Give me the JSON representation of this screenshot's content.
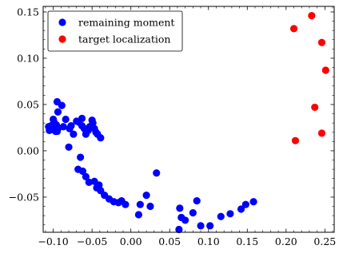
{
  "chart_data": {
    "type": "scatter",
    "title": "",
    "xlabel": "",
    "ylabel": "",
    "xlim": [
      -0.113,
      0.262
    ],
    "ylim": [
      -0.088,
      0.156
    ],
    "x_ticks": [
      -0.1,
      -0.05,
      0.0,
      0.05,
      0.1,
      0.15,
      0.2,
      0.25
    ],
    "x_tick_labels": [
      "−0.10",
      "−0.05",
      "0.00",
      "0.05",
      "0.10",
      "0.15",
      "0.20",
      "0.25"
    ],
    "y_ticks": [
      -0.05,
      0.0,
      0.05,
      0.1,
      0.15
    ],
    "y_tick_labels": [
      "−0.05",
      "0.00",
      "0.05",
      "0.10",
      "0.15"
    ],
    "grid": false,
    "legend_position": "top-left",
    "series": [
      {
        "name": "remaining moment",
        "color": "#0000ff",
        "points": [
          [
            -0.089,
            0.049
          ],
          [
            -0.094,
            0.042
          ],
          [
            -0.106,
            0.026
          ],
          [
            -0.105,
            0.022
          ],
          [
            -0.103,
            0.027
          ],
          [
            -0.102,
            0.024
          ],
          [
            -0.1,
            0.034
          ],
          [
            -0.099,
            0.031
          ],
          [
            -0.098,
            0.026
          ],
          [
            -0.097,
            0.021
          ],
          [
            -0.096,
            0.028
          ],
          [
            -0.094,
            0.024
          ],
          [
            -0.095,
            0.021
          ],
          [
            -0.087,
            0.026
          ],
          [
            -0.084,
            0.034
          ],
          [
            -0.079,
            0.024
          ],
          [
            -0.077,
            0.027
          ],
          [
            -0.074,
            0.018
          ],
          [
            -0.07,
            0.032
          ],
          [
            -0.067,
            0.031
          ],
          [
            -0.063,
            0.035
          ],
          [
            -0.063,
            0.027
          ],
          [
            -0.06,
            0.024
          ],
          [
            -0.058,
            0.018
          ],
          [
            -0.055,
            0.022
          ],
          [
            -0.053,
            0.026
          ],
          [
            -0.05,
            0.033
          ],
          [
            -0.049,
            0.03
          ],
          [
            -0.047,
            0.024
          ],
          [
            -0.045,
            0.02
          ],
          [
            -0.043,
            0.018
          ],
          [
            -0.039,
            0.014
          ],
          [
            -0.095,
            0.053
          ],
          [
            -0.08,
            0.004
          ],
          [
            -0.068,
            -0.02
          ],
          [
            -0.062,
            -0.022
          ],
          [
            -0.065,
            -0.007
          ],
          [
            -0.058,
            -0.028
          ],
          [
            -0.054,
            -0.034
          ],
          [
            -0.047,
            -0.033
          ],
          [
            -0.044,
            -0.04
          ],
          [
            -0.041,
            -0.037
          ],
          [
            -0.039,
            -0.043
          ],
          [
            -0.034,
            -0.048
          ],
          [
            -0.028,
            -0.052
          ],
          [
            -0.022,
            -0.055
          ],
          [
            -0.016,
            -0.056
          ],
          [
            -0.012,
            -0.054
          ],
          [
            -0.007,
            -0.058
          ],
          [
            0.01,
            -0.069
          ],
          [
            0.012,
            -0.058
          ],
          [
            0.025,
            -0.06
          ],
          [
            0.033,
            -0.024
          ],
          [
            0.063,
            -0.062
          ],
          [
            0.065,
            -0.072
          ],
          [
            0.07,
            -0.075
          ],
          [
            0.08,
            -0.067
          ],
          [
            0.085,
            -0.054
          ],
          [
            0.09,
            -0.081
          ],
          [
            0.102,
            -0.081
          ],
          [
            0.128,
            -0.068
          ],
          [
            0.142,
            -0.063
          ],
          [
            0.148,
            -0.058
          ],
          [
            0.158,
            -0.055
          ],
          [
            0.116,
            -0.071
          ],
          [
            0.02,
            -0.048
          ],
          [
            0.062,
            -0.085
          ]
        ]
      },
      {
        "name": "target localization",
        "color": "#ff0000",
        "points": [
          [
            0.233,
            0.146
          ],
          [
            0.21,
            0.132
          ],
          [
            0.246,
            0.117
          ],
          [
            0.251,
            0.087
          ],
          [
            0.237,
            0.047
          ],
          [
            0.246,
            0.019
          ],
          [
            0.212,
            0.011
          ]
        ]
      }
    ]
  }
}
